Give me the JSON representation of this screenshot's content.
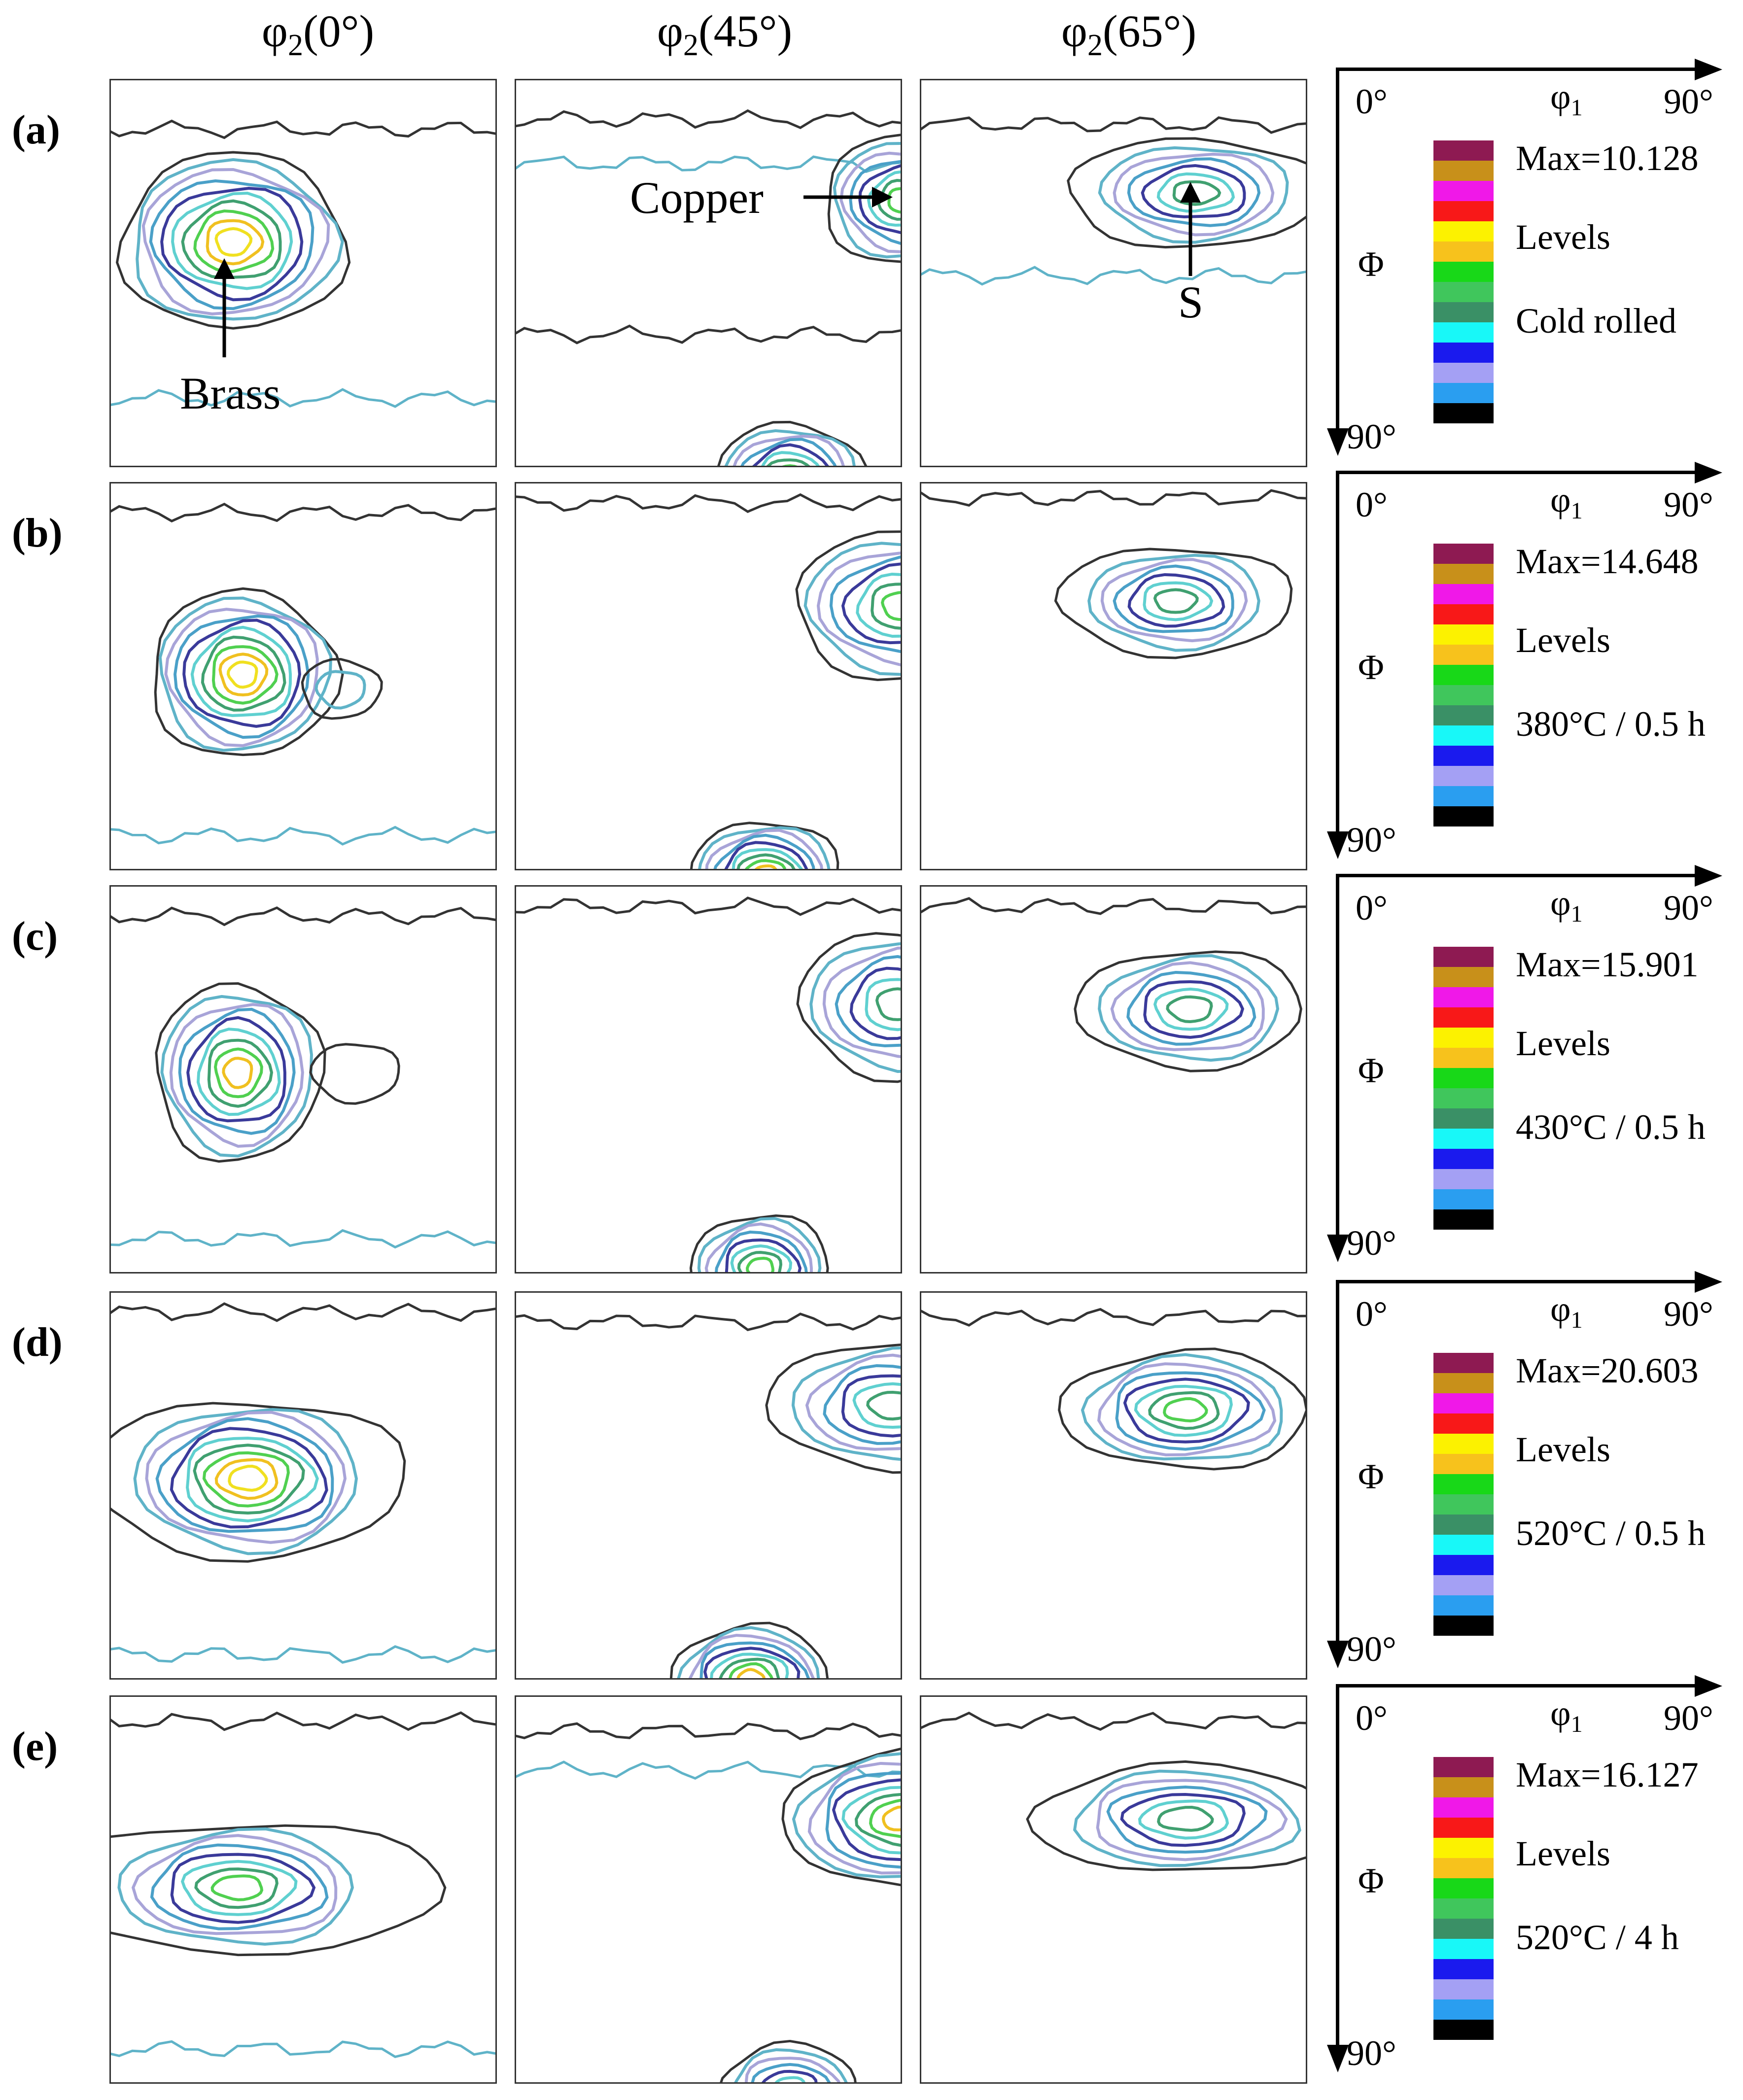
{
  "figure": {
    "column_headers": [
      {
        "phi": "φ",
        "sub": "2",
        "angle": "(0°)"
      },
      {
        "phi": "φ",
        "sub": "2",
        "angle": "(45°)"
      },
      {
        "phi": "φ",
        "sub": "2",
        "angle": "(65°)"
      }
    ],
    "axes": {
      "x_start": "0°",
      "x_symbol": "φ",
      "x_sub": "1",
      "x_end": "90°",
      "y_symbol": "Φ",
      "y_end": "90°"
    },
    "annotations": {
      "brass": "Brass",
      "copper": "Copper",
      "s": "S"
    },
    "level_colors": [
      "#8e1a52",
      "#c8901a",
      "#f018e8",
      "#f81818",
      "#fcf200",
      "#f7c21c",
      "#18d818",
      "#40c65c",
      "#3a9066",
      "#18f8f8",
      "#1a1aee",
      "#a4a0f4",
      "#2a9ef0",
      "#000000"
    ],
    "rows": [
      {
        "label": "(a)",
        "max": "Max=10.128",
        "levels": "Levels",
        "condition": "Cold rolled"
      },
      {
        "label": "(b)",
        "max": "Max=14.648",
        "levels": "Levels",
        "condition": "380°C / 0.5 h"
      },
      {
        "label": "(c)",
        "max": "Max=15.901",
        "levels": "Levels",
        "condition": "430°C / 0.5 h"
      },
      {
        "label": "(d)",
        "max": "Max=20.603",
        "levels": "Levels",
        "condition": "520°C / 0.5 h"
      },
      {
        "label": "(e)",
        "max": "Max=16.127",
        "levels": "Levels",
        "condition": "520°C / 4 h"
      }
    ]
  }
}
